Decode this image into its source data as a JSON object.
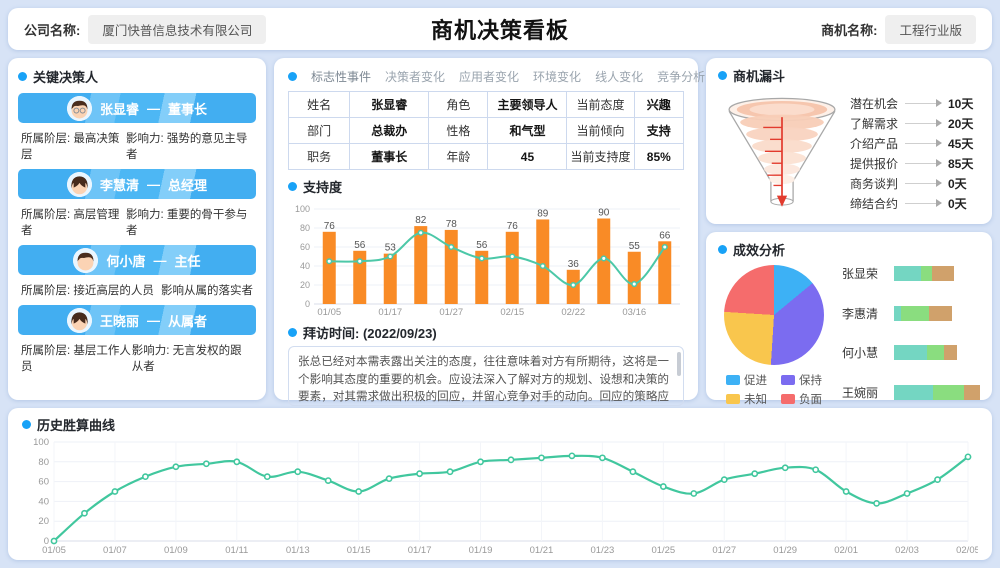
{
  "header": {
    "company_label": "公司名称:",
    "company_name": "厦门快普信息技术有限公司",
    "title": "商机决策看板",
    "opportunity_label": "商机名称:",
    "opportunity_name": "工程行业版"
  },
  "left": {
    "title": "关键决策人",
    "separator": "—",
    "people": [
      {
        "name": "张显睿",
        "role": "董事长",
        "attr1": "所属阶层: 最高决策层",
        "attr2": "影响力: 强势的意见主导者"
      },
      {
        "name": "李慧清",
        "role": "总经理",
        "attr1": "所属阶层: 高层管理者",
        "attr2": "影响力: 重要的骨干参与者"
      },
      {
        "name": "何小唐",
        "role": "主任",
        "attr1": "所属阶层: 接近高层的人员",
        "attr2": "影响从属的落实者"
      },
      {
        "name": "王晓丽",
        "role": "从属者",
        "attr1": "所属阶层: 基层工作人员",
        "attr2": "影响力: 无言发权的跟从者"
      }
    ]
  },
  "tabs": [
    "标志性事件",
    "决策者变化",
    "应用者变化",
    "环境变化",
    "线人变化",
    "竞争分析"
  ],
  "profile": {
    "rows": [
      [
        "姓名",
        "张显睿",
        "角色",
        "主要领导人",
        "当前态度",
        "兴趣"
      ],
      [
        "部门",
        "总裁办",
        "性格",
        "和气型",
        "当前倾向",
        "支持"
      ],
      [
        "职务",
        "董事长",
        "年龄",
        "45",
        "当前支持度",
        "85%"
      ]
    ]
  },
  "middle": {
    "support_title": "支持度",
    "visit_title": "拜访时间: (2022/09/23)",
    "visit_text": "张总已经对本需表露出关注的态度，往往意味着对方有所期待，这将是一个影响其态度的重要的机会。应设法深入了解对方的规划、设想和决策的要素，对其需求做出积极的回应，并留心竞争对手的动向。回应的策略应注意强化己方的优势，突出差异，陈述双赢的前景。目前对..."
  },
  "funnel_title": "商机漏斗",
  "effect_title": "成效分析",
  "bottom_title": "历史胜算曲线",
  "chart_data": [
    {
      "id": "support",
      "type": "bar",
      "title": "支持度",
      "categories": [
        "01/05",
        "",
        "01/17",
        "",
        "01/27",
        "",
        "02/15",
        "",
        "02/22",
        "",
        "03/16",
        ""
      ],
      "series": [
        {
          "name": "支持度",
          "type": "bar",
          "color": "#f98b26",
          "values": [
            76,
            56,
            53,
            82,
            78,
            56,
            76,
            89,
            36,
            90,
            55,
            66
          ]
        },
        {
          "name": "趋势",
          "type": "line",
          "color": "#4cc8a8",
          "values": [
            45,
            45,
            50,
            75,
            60,
            48,
            50,
            40,
            20,
            48,
            21,
            60
          ]
        }
      ],
      "ylim": [
        0,
        100
      ],
      "grid": true
    },
    {
      "id": "history",
      "type": "line",
      "title": "历史胜算曲线",
      "color": "#41c79e",
      "x": [
        "01/05",
        "",
        "01/07",
        "",
        "01/09",
        "",
        "01/11",
        "",
        "01/13",
        "",
        "01/15",
        "",
        "01/17",
        "",
        "01/19",
        "",
        "01/21",
        "",
        "01/23",
        "",
        "01/25",
        "",
        "01/27",
        "",
        "01/29",
        "",
        "02/01",
        "",
        "02/03",
        "",
        "02/05"
      ],
      "values": [
        0,
        28,
        50,
        65,
        75,
        78,
        80,
        65,
        70,
        61,
        50,
        63,
        68,
        70,
        80,
        82,
        84,
        86,
        84,
        70,
        55,
        48,
        62,
        68,
        74,
        72,
        50,
        38,
        48,
        62,
        85
      ],
      "ylim": [
        0,
        100
      ],
      "grid": true
    },
    {
      "id": "funnel",
      "type": "funnel",
      "title": "商机漏斗",
      "stages": [
        {
          "label": "潜在机会",
          "value": "10天"
        },
        {
          "label": "了解需求",
          "value": "20天"
        },
        {
          "label": "介绍产品",
          "value": "45天"
        },
        {
          "label": "提供报价",
          "value": "85天"
        },
        {
          "label": "商务谈判",
          "value": "0天"
        },
        {
          "label": "缔结合约",
          "value": "0天"
        }
      ]
    },
    {
      "id": "effect_pie",
      "type": "pie",
      "labels": [
        "促进",
        "保持",
        "未知",
        "负面"
      ],
      "values": [
        14,
        37,
        25,
        24
      ],
      "colors": [
        "#3db1f5",
        "#7b6cf0",
        "#f9c64d",
        "#f56c6c"
      ]
    },
    {
      "id": "effect_bars",
      "type": "bar",
      "orientation": "horizontal-stacked",
      "colors": [
        "#74d6c2",
        "#8add7f",
        "#d0a16b"
      ],
      "rows": [
        {
          "name": "张显荣",
          "total": 70,
          "segments": [
            45,
            18,
            37
          ]
        },
        {
          "name": "李惠清",
          "total": 67,
          "segments": [
            12,
            48,
            40
          ]
        },
        {
          "name": "何小慧",
          "total": 73,
          "segments": [
            52,
            27,
            21
          ]
        },
        {
          "name": "王婉丽",
          "total": 100,
          "segments": [
            45,
            36,
            19
          ]
        }
      ]
    }
  ]
}
